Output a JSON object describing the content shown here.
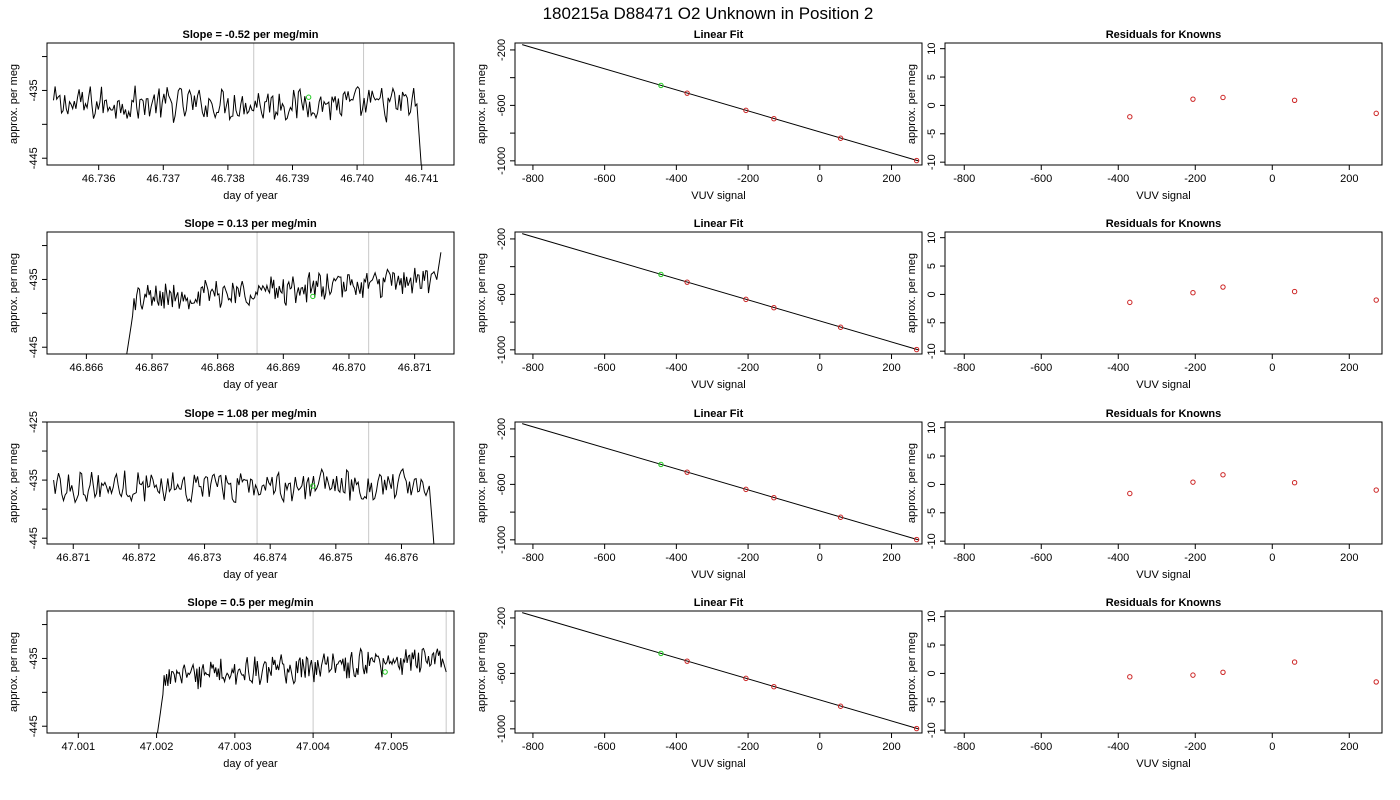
{
  "figure_title": "180215a     D88471    O2 Unknown in Position  2",
  "colors": {
    "trace": "#000000",
    "known_point": "#cc2222",
    "unknown_point": "#22cc22",
    "marker_line": "#c8c8c8",
    "fit_line": "#000000"
  },
  "chart_data": [
    {
      "type": "line",
      "title": "Slope =  -0.52  per meg/min",
      "xlabel": "day of year",
      "ylabel": "approx. per meg",
      "xlim": [
        46.7352,
        46.7415
      ],
      "ylim": [
        -446,
        -428
      ],
      "xticks": [
        46.736,
        46.737,
        46.738,
        46.739,
        46.74,
        46.741
      ],
      "xticklabels": [
        "46.736",
        "46.737",
        "46.738",
        "46.739",
        "46.740",
        "46.741"
      ],
      "yticks": [
        -445,
        -440,
        -435,
        -430
      ],
      "yticklabels": [
        "-445",
        "",
        "-435",
        ""
      ],
      "x_start": 46.7353,
      "x_end": 46.741,
      "trace_start": -438,
      "trace_base": -437,
      "trace_noise": 2.2,
      "trace_drift": 0.0,
      "flat_until": null,
      "flat_level": null,
      "end_drop": -447,
      "vlines": [
        46.7384,
        46.7401
      ],
      "unknown_point": {
        "x": 46.73925,
        "y": -436
      }
    },
    {
      "type": "scatter",
      "title": "Linear Fit",
      "xlabel": "VUV signal",
      "ylabel": "approx. per meg",
      "xlim": [
        -850,
        285
      ],
      "ylim": [
        -1030,
        -150
      ],
      "xticks": [
        -800,
        -600,
        -400,
        -200,
        0,
        200
      ],
      "xticklabels": [
        "-800",
        "-600",
        "-400",
        "-200",
        "0",
        "200"
      ],
      "yticks": [
        -1000,
        -800,
        -600,
        -400,
        -200
      ],
      "yticklabels": [
        "-1000",
        "",
        "-600",
        "",
        "-200"
      ],
      "fit": {
        "x0": -830,
        "y0": -162,
        "x1": 275,
        "y1": -1000
      },
      "knowns": [
        {
          "x": -370,
          "y": -512
        },
        {
          "x": -206,
          "y": -636
        },
        {
          "x": -128,
          "y": -696
        },
        {
          "x": 58,
          "y": -837
        },
        {
          "x": 270,
          "y": -998
        }
      ],
      "unknown": {
        "x": -443,
        "y": -456
      }
    },
    {
      "type": "scatter",
      "title": "Residuals for Knowns",
      "xlabel": "VUV signal",
      "ylabel": "approx. per meg",
      "xlim": [
        -850,
        285
      ],
      "ylim": [
        -10.5,
        11
      ],
      "xticks": [
        -800,
        -600,
        -400,
        -200,
        0,
        200
      ],
      "xticklabels": [
        "-800",
        "-600",
        "-400",
        "-200",
        "0",
        "200"
      ],
      "yticks": [
        -10,
        -5,
        0,
        5,
        10
      ],
      "yticklabels": [
        "-10",
        "-5",
        "0",
        "5",
        "10"
      ],
      "points": [
        {
          "x": -370,
          "y": -2.0
        },
        {
          "x": -206,
          "y": 1.1
        },
        {
          "x": -128,
          "y": 1.4
        },
        {
          "x": 58,
          "y": 0.9
        },
        {
          "x": 270,
          "y": -1.4
        }
      ]
    },
    {
      "type": "line",
      "title": "Slope =  0.13  per meg/min",
      "xlabel": "day of year",
      "ylabel": "approx. per meg",
      "xlim": [
        46.8654,
        46.8716
      ],
      "ylim": [
        -446,
        -428
      ],
      "xticks": [
        46.866,
        46.867,
        46.868,
        46.869,
        46.87,
        46.871
      ],
      "xticklabels": [
        "46.866",
        "46.867",
        "46.868",
        "46.869",
        "46.870",
        "46.871"
      ],
      "yticks": [
        -445,
        -440,
        -435,
        -430
      ],
      "yticklabels": [
        "-445",
        "",
        "-435",
        ""
      ],
      "x_start": 46.8666,
      "x_end": 46.8714,
      "trace_start": -447,
      "trace_base": -438,
      "trace_noise": 1.8,
      "trace_drift": 3.0,
      "flat_until": null,
      "flat_level": null,
      "end_drop": -431,
      "vlines": [
        46.8686,
        46.8703
      ],
      "unknown_point": {
        "x": 46.86945,
        "y": -437.5
      }
    },
    {
      "type": "scatter",
      "title": "Linear Fit",
      "xlabel": "VUV signal",
      "ylabel": "approx. per meg",
      "xlim": [
        -850,
        285
      ],
      "ylim": [
        -1030,
        -150
      ],
      "xticks": [
        -800,
        -600,
        -400,
        -200,
        0,
        200
      ],
      "xticklabels": [
        "-800",
        "-600",
        "-400",
        "-200",
        "0",
        "200"
      ],
      "yticks": [
        -1000,
        -800,
        -600,
        -400,
        -200
      ],
      "yticklabels": [
        "-1000",
        "",
        "-600",
        "",
        "-200"
      ],
      "fit": {
        "x0": -830,
        "y0": -162,
        "x1": 275,
        "y1": -1000
      },
      "knowns": [
        {
          "x": -370,
          "y": -512
        },
        {
          "x": -206,
          "y": -636
        },
        {
          "x": -128,
          "y": -696
        },
        {
          "x": 58,
          "y": -837
        },
        {
          "x": 270,
          "y": -998
        }
      ],
      "unknown": {
        "x": -443,
        "y": -456
      }
    },
    {
      "type": "scatter",
      "title": "Residuals for Knowns",
      "xlabel": "VUV signal",
      "ylabel": "approx. per meg",
      "xlim": [
        -850,
        285
      ],
      "ylim": [
        -10.5,
        11
      ],
      "xticks": [
        -800,
        -600,
        -400,
        -200,
        0,
        200
      ],
      "xticklabels": [
        "-800",
        "-600",
        "-400",
        "-200",
        "0",
        "200"
      ],
      "yticks": [
        -10,
        -5,
        0,
        5,
        10
      ],
      "yticklabels": [
        "-10",
        "-5",
        "0",
        "5",
        "10"
      ],
      "points": [
        {
          "x": -370,
          "y": -1.4
        },
        {
          "x": -206,
          "y": 0.3
        },
        {
          "x": -128,
          "y": 1.3
        },
        {
          "x": 58,
          "y": 0.5
        },
        {
          "x": 270,
          "y": -1.0
        }
      ]
    },
    {
      "type": "line",
      "title": "Slope =  1.08  per meg/min",
      "xlabel": "day of year",
      "ylabel": "approx. per meg",
      "xlim": [
        46.8706,
        46.8768
      ],
      "ylim": [
        -446,
        -425
      ],
      "xticks": [
        46.871,
        46.872,
        46.873,
        46.874,
        46.875,
        46.876
      ],
      "xticklabels": [
        "46.871",
        "46.872",
        "46.873",
        "46.874",
        "46.875",
        "46.876"
      ],
      "yticks": [
        -445,
        -440,
        -435,
        -430,
        -425
      ],
      "yticklabels": [
        "-445",
        "",
        "-435",
        "",
        "-425"
      ],
      "x_start": 46.8707,
      "x_end": 46.8765,
      "trace_start": -437,
      "trace_base": -436,
      "trace_noise": 2.4,
      "trace_drift": 0.0,
      "flat_until": null,
      "flat_level": null,
      "end_drop": -447,
      "vlines": [
        46.8738,
        46.8755
      ],
      "unknown_point": {
        "x": 46.87465,
        "y": -436
      }
    },
    {
      "type": "scatter",
      "title": "Linear Fit",
      "xlabel": "VUV signal",
      "ylabel": "approx. per meg",
      "xlim": [
        -850,
        285
      ],
      "ylim": [
        -1030,
        -150
      ],
      "xticks": [
        -800,
        -600,
        -400,
        -200,
        0,
        200
      ],
      "xticklabels": [
        "-800",
        "-600",
        "-400",
        "-200",
        "0",
        "200"
      ],
      "yticks": [
        -1000,
        -800,
        -600,
        -400,
        -200
      ],
      "yticklabels": [
        "-1000",
        "",
        "-600",
        "",
        "-200"
      ],
      "fit": {
        "x0": -830,
        "y0": -162,
        "x1": 275,
        "y1": -1000
      },
      "knowns": [
        {
          "x": -370,
          "y": -512
        },
        {
          "x": -206,
          "y": -636
        },
        {
          "x": -128,
          "y": -696
        },
        {
          "x": 58,
          "y": -837
        },
        {
          "x": 270,
          "y": -998
        }
      ],
      "unknown": {
        "x": -443,
        "y": -456
      }
    },
    {
      "type": "scatter",
      "title": "Residuals for Knowns",
      "xlabel": "VUV signal",
      "ylabel": "approx. per meg",
      "xlim": [
        -850,
        285
      ],
      "ylim": [
        -10.5,
        11
      ],
      "points": [
        {
          "x": -370,
          "y": -1.6
        },
        {
          "x": -206,
          "y": 0.4
        },
        {
          "x": -128,
          "y": 1.7
        },
        {
          "x": 58,
          "y": 0.3
        },
        {
          "x": 270,
          "y": -1.0
        }
      ],
      "xticks": [
        -800,
        -600,
        -400,
        -200,
        0,
        200
      ],
      "xticklabels": [
        "-800",
        "-600",
        "-400",
        "-200",
        "0",
        "200"
      ],
      "yticks": [
        -10,
        -5,
        0,
        5,
        10
      ],
      "yticklabels": [
        "-10",
        "-5",
        "0",
        "5",
        "10"
      ]
    },
    {
      "type": "line",
      "title": "Slope =  0.5  per meg/min",
      "xlabel": "day of year",
      "ylabel": "approx. per meg",
      "xlim": [
        47.0006,
        47.0058
      ],
      "ylim": [
        -446,
        -428
      ],
      "xticks": [
        47.001,
        47.002,
        47.003,
        47.004,
        47.005
      ],
      "xticklabels": [
        "47.001",
        "47.002",
        "47.003",
        "47.004",
        "47.005"
      ],
      "yticks": [
        -445,
        -440,
        -435,
        -430
      ],
      "yticklabels": [
        "-445",
        "",
        "-435",
        ""
      ],
      "x_start": 47.002,
      "x_end": 47.0057,
      "trace_start": -447,
      "trace_base": -438,
      "trace_noise": 1.8,
      "trace_drift": 3.0,
      "flat_until": null,
      "flat_level": null,
      "end_drop": -437,
      "vlines": [
        47.004,
        47.0057
      ],
      "unknown_point": {
        "x": 47.00492,
        "y": -437
      }
    },
    {
      "type": "scatter",
      "title": "Linear Fit",
      "xlabel": "VUV signal",
      "ylabel": "approx. per meg",
      "xlim": [
        -850,
        285
      ],
      "ylim": [
        -1030,
        -150
      ],
      "xticks": [
        -800,
        -600,
        -400,
        -200,
        0,
        200
      ],
      "xticklabels": [
        "-800",
        "-600",
        "-400",
        "-200",
        "0",
        "200"
      ],
      "yticks": [
        -1000,
        -800,
        -600,
        -400,
        -200
      ],
      "yticklabels": [
        "-1000",
        "",
        "-600",
        "",
        "-200"
      ],
      "fit": {
        "x0": -830,
        "y0": -162,
        "x1": 275,
        "y1": -1000
      },
      "knowns": [
        {
          "x": -370,
          "y": -512
        },
        {
          "x": -206,
          "y": -636
        },
        {
          "x": -128,
          "y": -696
        },
        {
          "x": 58,
          "y": -837
        },
        {
          "x": 270,
          "y": -998
        }
      ],
      "unknown": {
        "x": -443,
        "y": -456
      }
    },
    {
      "type": "scatter",
      "title": "Residuals for Knowns",
      "xlabel": "VUV signal",
      "ylabel": "approx. per meg",
      "xlim": [
        -850,
        285
      ],
      "ylim": [
        -10.5,
        11
      ],
      "xticks": [
        -800,
        -600,
        -400,
        -200,
        0,
        200
      ],
      "xticklabels": [
        "-800",
        "-600",
        "-400",
        "-200",
        "0",
        "200"
      ],
      "yticks": [
        -10,
        -5,
        0,
        5,
        10
      ],
      "yticklabels": [
        "-10",
        "-5",
        "0",
        "5",
        "10"
      ],
      "points": [
        {
          "x": -370,
          "y": -0.6
        },
        {
          "x": -206,
          "y": -0.3
        },
        {
          "x": -128,
          "y": 0.2
        },
        {
          "x": 58,
          "y": 2.0
        },
        {
          "x": 270,
          "y": -1.5
        }
      ]
    }
  ]
}
